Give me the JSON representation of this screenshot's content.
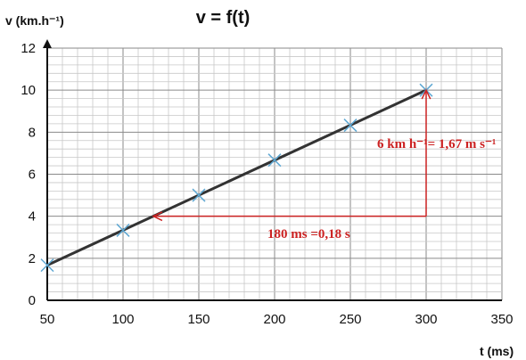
{
  "chart_data": {
    "type": "scatter",
    "title": "v = f(t)",
    "xlabel": "t (ms)",
    "ylabel": "v (km.h⁻¹)",
    "xlim": [
      50,
      350
    ],
    "ylim": [
      0,
      12
    ],
    "x_ticks": [
      50,
      100,
      150,
      200,
      250,
      300,
      350
    ],
    "y_ticks": [
      0,
      2,
      4,
      6,
      8,
      10,
      12
    ],
    "grid": true,
    "series": [
      {
        "marker": "x",
        "color": "#5fa8d3",
        "points": [
          {
            "x": 50,
            "y": 1.67
          },
          {
            "x": 100,
            "y": 3.33
          },
          {
            "x": 150,
            "y": 5.0
          },
          {
            "x": 200,
            "y": 6.67
          },
          {
            "x": 250,
            "y": 8.33
          },
          {
            "x": 300,
            "y": 10.0
          }
        ]
      }
    ],
    "fit_line": {
      "from": {
        "x": 50,
        "y": 1.67
      },
      "to": {
        "x": 300,
        "y": 10.0
      },
      "color": "#333333"
    },
    "annotations": [
      {
        "id": "horizontal",
        "text": "180 ms =0,18 s",
        "from": {
          "x": 300,
          "y": 4
        },
        "to": {
          "x": 120,
          "y": 4
        },
        "color": "#cc2222"
      },
      {
        "id": "vertical",
        "text": "6 km h⁻¹= 1,67 m s⁻¹",
        "from": {
          "x": 300,
          "y": 4
        },
        "to": {
          "x": 300,
          "y": 10
        },
        "color": "#cc2222"
      }
    ]
  }
}
